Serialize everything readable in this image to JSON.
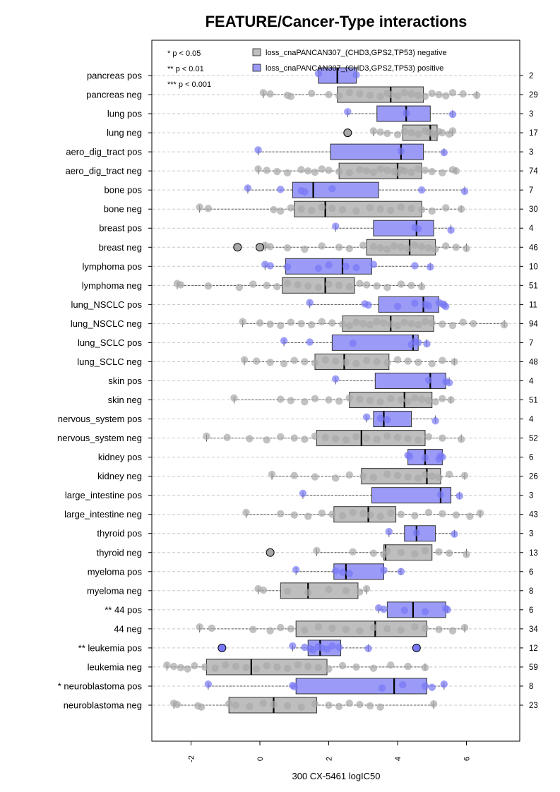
{
  "chart_data": {
    "type": "box",
    "title": "FEATURE/Cancer-Type interactions",
    "xlabel": "300 CX-5461 logIC50",
    "xlim": [
      -3.2,
      7.5
    ],
    "xticks": [
      -2,
      0,
      2,
      4,
      6
    ],
    "xtick_labels": [
      "-2",
      "0",
      "2",
      "4",
      "6"
    ],
    "grid": "dashed horizontal",
    "legend": {
      "placement": "top",
      "significance": [
        "* p < 0.05",
        "** p < 0.01",
        "*** p < 0.001"
      ],
      "entries": [
        {
          "label": "loss_cnaPANCAN307_(CHD3,GPS2,TP53) negative",
          "color": "#bebebe"
        },
        {
          "label": "loss_cnaPANCAN307_(CHD3,GPS2,TP53) positive",
          "color": "#9b9bf7"
        }
      ]
    },
    "colors": {
      "neg_fill": "#bebebe",
      "pos_fill": "#9b9bf7",
      "neg_point": "#a8a8a8",
      "pos_point": "#7878f5"
    },
    "groups": [
      {
        "label": "pancreas pos",
        "n": "2",
        "kind": "pos",
        "q1": 1.7,
        "median": 2.25,
        "q3": 2.8,
        "wlo": 1.7,
        "whi": 2.8,
        "outliers": [],
        "points": [
          1.7,
          2.8
        ]
      },
      {
        "label": "pancreas neg",
        "n": "29",
        "kind": "neg",
        "q1": 2.25,
        "median": 3.8,
        "q3": 4.75,
        "wlo": 0.1,
        "whi": 6.3,
        "outliers": [],
        "points": [
          0.1,
          0.3,
          0.8,
          0.9,
          1.5,
          2.0,
          2.3,
          2.6,
          2.9,
          3.2,
          3.5,
          3.7,
          3.8,
          4.0,
          4.2,
          4.4,
          4.6,
          4.8,
          5.0,
          5.2,
          5.4,
          5.6,
          5.9,
          6.3
        ]
      },
      {
        "label": "lung pos",
        "n": "3",
        "kind": "pos",
        "q1": 3.4,
        "median": 4.25,
        "q3": 4.95,
        "wlo": 2.55,
        "whi": 5.6,
        "outliers": [],
        "points": [
          2.55,
          4.25,
          5.6
        ]
      },
      {
        "label": "lung neg",
        "n": "17",
        "kind": "neg",
        "q1": 4.15,
        "median": 4.95,
        "q3": 5.15,
        "wlo": 3.3,
        "whi": 5.6,
        "outliers": [
          2.55
        ],
        "points": [
          3.3,
          3.5,
          3.7,
          4.0,
          4.2,
          4.4,
          4.6,
          4.8,
          4.9,
          5.0,
          5.1,
          5.2,
          5.3,
          5.5,
          5.6
        ]
      },
      {
        "label": "aero_dig_tract pos",
        "n": "3",
        "kind": "pos",
        "q1": 2.05,
        "median": 4.1,
        "q3": 4.75,
        "wlo": -0.05,
        "whi": 5.35,
        "outliers": [],
        "points": [
          -0.05,
          4.1,
          5.35
        ]
      },
      {
        "label": "aero_dig_tract neg",
        "n": "74",
        "kind": "neg",
        "q1": 2.3,
        "median": 4.0,
        "q3": 4.7,
        "wlo": -0.05,
        "whi": 5.7,
        "outliers": [],
        "points": [
          -0.05,
          0.2,
          0.5,
          0.8,
          1.2,
          1.4,
          1.6,
          1.8,
          2.0,
          2.3,
          2.6,
          2.9,
          3.1,
          3.3,
          3.5,
          3.7,
          3.9,
          4.0,
          4.1,
          4.2,
          4.4,
          4.6,
          4.8,
          5.0,
          5.3,
          5.6,
          5.7
        ]
      },
      {
        "label": "bone pos",
        "n": "7",
        "kind": "pos",
        "q1": 0.95,
        "median": 1.55,
        "q3": 3.45,
        "wlo": -0.35,
        "whi": 5.95,
        "outliers": [],
        "points": [
          -0.35,
          0.6,
          1.2,
          1.3,
          2.1,
          4.7,
          5.95
        ]
      },
      {
        "label": "bone neg",
        "n": "30",
        "kind": "neg",
        "q1": 1.0,
        "median": 1.9,
        "q3": 4.7,
        "wlo": -1.75,
        "whi": 5.85,
        "outliers": [],
        "points": [
          -1.75,
          -1.5,
          0.4,
          0.6,
          0.9,
          1.2,
          1.5,
          1.8,
          2.1,
          2.4,
          2.8,
          3.2,
          3.5,
          3.8,
          4.1,
          4.4,
          4.7,
          5.0,
          5.4,
          5.85
        ]
      },
      {
        "label": "breast pos",
        "n": "4",
        "kind": "pos",
        "q1": 3.3,
        "median": 4.55,
        "q3": 5.05,
        "wlo": 2.2,
        "whi": 5.55,
        "outliers": [],
        "points": [
          2.2,
          4.5,
          4.6,
          5.55
        ]
      },
      {
        "label": "breast neg",
        "n": "46",
        "kind": "neg",
        "q1": 3.1,
        "median": 4.35,
        "q3": 5.1,
        "wlo": 0.15,
        "whi": 6.0,
        "outliers": [
          -0.65,
          0.0
        ],
        "points": [
          0.15,
          0.3,
          0.8,
          1.3,
          1.8,
          2.3,
          2.6,
          3.0,
          3.3,
          3.5,
          3.7,
          3.9,
          4.1,
          4.3,
          4.5,
          4.7,
          4.9,
          5.1,
          5.4,
          5.7,
          6.0
        ]
      },
      {
        "label": "lymphoma pos",
        "n": "10",
        "kind": "pos",
        "q1": 0.75,
        "median": 2.4,
        "q3": 3.25,
        "wlo": 0.15,
        "whi": 4.95,
        "outliers": [],
        "points": [
          0.15,
          0.3,
          0.8,
          1.7,
          2.0,
          2.5,
          2.8,
          3.3,
          4.5,
          4.95
        ]
      },
      {
        "label": "lymphoma neg",
        "n": "51",
        "kind": "neg",
        "q1": 0.65,
        "median": 1.9,
        "q3": 2.75,
        "wlo": -2.4,
        "whi": 4.7,
        "outliers": [],
        "points": [
          -2.4,
          -2.3,
          -1.5,
          -0.6,
          -0.2,
          0.2,
          0.5,
          0.8,
          1.1,
          1.4,
          1.7,
          2.0,
          2.3,
          2.6,
          2.9,
          3.1,
          3.4,
          3.7,
          4.1,
          4.4,
          4.7
        ]
      },
      {
        "label": "lung_NSCLC pos",
        "n": "11",
        "kind": "pos",
        "q1": 3.45,
        "median": 4.75,
        "q3": 5.2,
        "wlo": 1.45,
        "whi": 5.4,
        "outliers": [],
        "points": [
          1.45,
          3.05,
          3.15,
          4.0,
          4.5,
          4.8,
          4.9,
          5.2,
          5.3,
          5.35,
          5.4
        ]
      },
      {
        "label": "lung_NSCLC neg",
        "n": "94",
        "kind": "neg",
        "q1": 2.4,
        "median": 3.8,
        "q3": 5.05,
        "wlo": -0.5,
        "whi": 7.1,
        "outliers": [],
        "points": [
          -0.5,
          0.0,
          0.3,
          0.6,
          0.9,
          1.2,
          1.5,
          1.8,
          2.1,
          2.4,
          2.6,
          2.8,
          3.0,
          3.2,
          3.4,
          3.6,
          3.8,
          4.0,
          4.2,
          4.4,
          4.6,
          4.8,
          5.0,
          5.3,
          5.6,
          5.9,
          6.2,
          7.1
        ]
      },
      {
        "label": "lung_SCLC pos",
        "n": "7",
        "kind": "pos",
        "q1": 2.1,
        "median": 4.45,
        "q3": 4.6,
        "wlo": 0.7,
        "whi": 4.85,
        "outliers": [],
        "points": [
          0.7,
          1.45,
          2.7,
          4.4,
          4.5,
          4.6,
          4.85
        ]
      },
      {
        "label": "lung_SCLC neg",
        "n": "48",
        "kind": "neg",
        "q1": 1.6,
        "median": 2.45,
        "q3": 3.75,
        "wlo": -0.45,
        "whi": 5.65,
        "outliers": [],
        "points": [
          -0.45,
          -0.1,
          0.3,
          0.7,
          1.0,
          1.3,
          1.6,
          1.9,
          2.2,
          2.5,
          2.8,
          3.1,
          3.4,
          3.7,
          4.0,
          4.3,
          4.6,
          5.0,
          5.3,
          5.65
        ]
      },
      {
        "label": "skin pos",
        "n": "4",
        "kind": "pos",
        "q1": 3.35,
        "median": 4.95,
        "q3": 5.4,
        "wlo": 2.2,
        "whi": 5.5,
        "outliers": [],
        "points": [
          2.2,
          4.9,
          5.4,
          5.5
        ]
      },
      {
        "label": "skin neg",
        "n": "51",
        "kind": "neg",
        "q1": 2.6,
        "median": 4.2,
        "q3": 5.0,
        "wlo": -0.75,
        "whi": 5.55,
        "outliers": [],
        "points": [
          -0.75,
          0.6,
          0.9,
          1.3,
          1.6,
          2.0,
          2.3,
          2.6,
          2.9,
          3.2,
          3.5,
          3.8,
          4.1,
          4.3,
          4.5,
          4.7,
          4.9,
          5.1,
          5.3,
          5.55
        ]
      },
      {
        "label": "nervous_system pos",
        "n": "4",
        "kind": "pos",
        "q1": 3.3,
        "median": 3.6,
        "q3": 4.4,
        "wlo": 3.1,
        "whi": 5.1,
        "outliers": [],
        "points": [
          3.1,
          3.5,
          3.7,
          5.1
        ]
      },
      {
        "label": "nervous_system neg",
        "n": "52",
        "kind": "neg",
        "q1": 1.65,
        "median": 2.95,
        "q3": 4.8,
        "wlo": -1.55,
        "whi": 5.85,
        "outliers": [],
        "points": [
          -1.55,
          -0.95,
          -0.3,
          0.2,
          0.6,
          1.0,
          1.3,
          1.6,
          1.9,
          2.2,
          2.5,
          2.8,
          3.1,
          3.4,
          3.7,
          4.0,
          4.3,
          4.6,
          4.9,
          5.3,
          5.85
        ]
      },
      {
        "label": "kidney pos",
        "n": "6",
        "kind": "pos",
        "q1": 4.3,
        "median": 4.8,
        "q3": 5.3,
        "wlo": 4.3,
        "whi": 5.3,
        "outliers": [],
        "points": [
          4.3,
          4.35,
          4.8,
          5.2,
          5.25,
          5.3
        ]
      },
      {
        "label": "kidney neg",
        "n": "26",
        "kind": "neg",
        "q1": 2.95,
        "median": 4.85,
        "q3": 5.25,
        "wlo": 0.35,
        "whi": 5.95,
        "outliers": [],
        "points": [
          0.35,
          1.0,
          1.6,
          2.2,
          2.6,
          3.0,
          3.3,
          3.7,
          4.0,
          4.3,
          4.6,
          4.8,
          5.0,
          5.2,
          5.5,
          5.95
        ]
      },
      {
        "label": "large_intestine pos",
        "n": "3",
        "kind": "pos",
        "q1": 3.25,
        "median": 5.25,
        "q3": 5.55,
        "wlo": 1.25,
        "whi": 5.8,
        "outliers": [],
        "points": [
          1.25,
          5.25,
          5.8
        ]
      },
      {
        "label": "large_intestine neg",
        "n": "43",
        "kind": "neg",
        "q1": 2.15,
        "median": 3.15,
        "q3": 3.95,
        "wlo": -0.4,
        "whi": 6.4,
        "outliers": [],
        "points": [
          -0.4,
          0.6,
          1.0,
          1.4,
          1.8,
          2.1,
          2.4,
          2.7,
          3.0,
          3.2,
          3.5,
          3.8,
          4.1,
          4.5,
          4.9,
          5.3,
          5.7,
          6.1,
          6.4
        ]
      },
      {
        "label": "thyroid pos",
        "n": "3",
        "kind": "pos",
        "q1": 4.2,
        "median": 4.55,
        "q3": 5.1,
        "wlo": 3.75,
        "whi": 5.65,
        "outliers": [],
        "points": [
          3.75,
          4.55,
          5.65
        ]
      },
      {
        "label": "thyroid neg",
        "n": "13",
        "kind": "neg",
        "q1": 3.6,
        "median": 3.65,
        "q3": 5.0,
        "wlo": 1.65,
        "whi": 6.0,
        "outliers": [
          0.3
        ],
        "points": [
          1.65,
          2.7,
          3.3,
          3.6,
          3.7,
          4.1,
          4.5,
          4.8,
          5.2,
          5.5,
          6.0
        ]
      },
      {
        "label": "myeloma pos",
        "n": "6",
        "kind": "pos",
        "q1": 2.15,
        "median": 2.5,
        "q3": 3.6,
        "wlo": 1.05,
        "whi": 4.1,
        "outliers": [],
        "points": [
          1.05,
          2.2,
          2.4,
          2.6,
          3.6,
          4.1
        ]
      },
      {
        "label": "myeloma neg",
        "n": "8",
        "kind": "neg",
        "q1": 0.6,
        "median": 1.4,
        "q3": 2.85,
        "wlo": -0.05,
        "whi": 3.1,
        "outliers": [],
        "points": [
          -0.05,
          0.1,
          0.8,
          1.4,
          2.0,
          2.5,
          2.9,
          3.1
        ]
      },
      {
        "label": "** 44 pos",
        "n": "6",
        "kind": "pos",
        "q1": 3.7,
        "median": 4.45,
        "q3": 5.4,
        "wlo": 3.45,
        "whi": 5.45,
        "outliers": [],
        "points": [
          3.45,
          3.6,
          4.2,
          4.8,
          5.4,
          5.45
        ]
      },
      {
        "label": "44 neg",
        "n": "34",
        "kind": "neg",
        "q1": 1.05,
        "median": 3.35,
        "q3": 4.85,
        "wlo": -1.75,
        "whi": 5.95,
        "outliers": [],
        "points": [
          -1.75,
          -1.4,
          -0.2,
          0.3,
          0.6,
          0.9,
          1.3,
          1.7,
          2.1,
          2.5,
          2.9,
          3.3,
          3.7,
          4.1,
          4.5,
          4.8,
          5.2,
          5.6,
          5.95
        ]
      },
      {
        "label": "** leukemia pos",
        "n": "12",
        "kind": "pos",
        "q1": 1.4,
        "median": 1.75,
        "q3": 2.35,
        "wlo": 0.95,
        "whi": 3.15,
        "outliers": [
          -1.1,
          4.55
        ],
        "points": [
          0.95,
          1.3,
          1.45,
          1.55,
          1.7,
          1.8,
          1.95,
          2.1,
          2.3,
          3.15
        ]
      },
      {
        "label": "leukemia neg",
        "n": "59",
        "kind": "neg",
        "q1": -1.55,
        "median": -0.25,
        "q3": 1.95,
        "wlo": -2.7,
        "whi": 4.8,
        "outliers": [],
        "points": [
          -2.7,
          -2.5,
          -2.3,
          -2.1,
          -1.9,
          -1.6,
          -1.3,
          -1.0,
          -0.7,
          -0.4,
          -0.1,
          0.2,
          0.5,
          0.8,
          1.1,
          1.4,
          1.7,
          2.0,
          2.4,
          2.8,
          3.3,
          3.8,
          4.3,
          4.8
        ]
      },
      {
        "label": "* neuroblastoma pos",
        "n": "8",
        "kind": "pos",
        "q1": 1.05,
        "median": 3.9,
        "q3": 4.85,
        "wlo": -1.5,
        "whi": 5.35,
        "outliers": [],
        "points": [
          -1.5,
          0.95,
          1.0,
          3.55,
          4.15,
          4.8,
          5.0,
          5.35
        ]
      },
      {
        "label": "neuroblastoma neg",
        "n": "23",
        "kind": "neg",
        "q1": -0.9,
        "median": 0.4,
        "q3": 1.65,
        "wlo": -2.5,
        "whi": 5.05,
        "outliers": [],
        "points": [
          -2.5,
          -2.4,
          -1.8,
          -1.7,
          -0.9,
          -0.7,
          -0.3,
          0.1,
          0.4,
          0.8,
          1.2,
          1.6,
          2.0,
          2.3,
          2.6,
          2.9,
          3.2,
          3.5,
          5.05
        ]
      }
    ]
  }
}
